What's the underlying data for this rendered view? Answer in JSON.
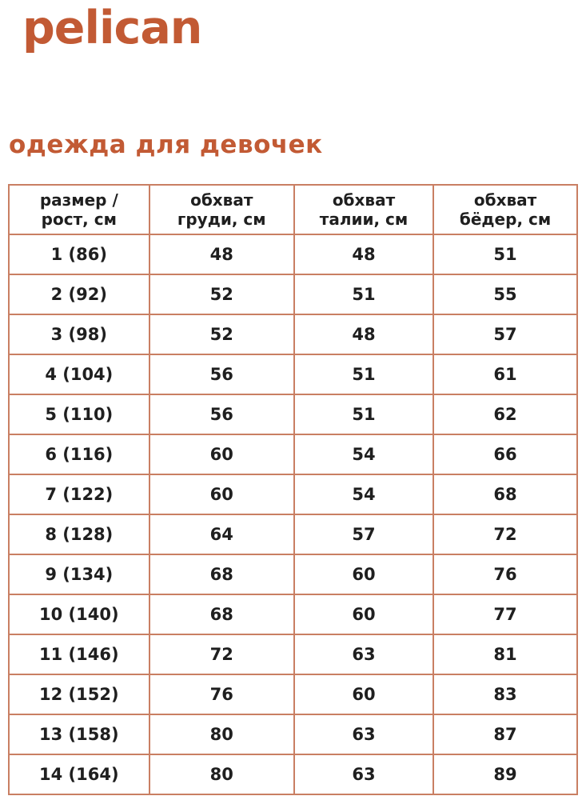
{
  "brand": {
    "logo_text": "pelican",
    "subtitle": "одежда для девочек"
  },
  "colors": {
    "accent": "#c25a34",
    "table_border": "#c97f63",
    "cell_text": "#1f1f1f",
    "background": "#ffffff"
  },
  "size_table": {
    "headers": [
      "размер /\nрост, см",
      "обхват\nгруди, см",
      "обхват\nталии, см",
      "обхват\nбёдер, см"
    ],
    "rows": [
      [
        "1 (86)",
        "48",
        "48",
        "51"
      ],
      [
        "2 (92)",
        "52",
        "51",
        "55"
      ],
      [
        "3 (98)",
        "52",
        "48",
        "57"
      ],
      [
        "4 (104)",
        "56",
        "51",
        "61"
      ],
      [
        "5 (110)",
        "56",
        "51",
        "62"
      ],
      [
        "6 (116)",
        "60",
        "54",
        "66"
      ],
      [
        "7 (122)",
        "60",
        "54",
        "68"
      ],
      [
        "8 (128)",
        "64",
        "57",
        "72"
      ],
      [
        "9 (134)",
        "68",
        "60",
        "76"
      ],
      [
        "10 (140)",
        "68",
        "60",
        "77"
      ],
      [
        "11 (146)",
        "72",
        "63",
        "81"
      ],
      [
        "12 (152)",
        "76",
        "60",
        "83"
      ],
      [
        "13 (158)",
        "80",
        "63",
        "87"
      ],
      [
        "14 (164)",
        "80",
        "63",
        "89"
      ]
    ]
  },
  "chart_data": {
    "type": "table",
    "title": "одежда для девочек",
    "columns": [
      "размер / рост, см",
      "обхват груди, см",
      "обхват талии, см",
      "обхват бёдер, см"
    ],
    "rows": [
      [
        "1 (86)",
        48,
        48,
        51
      ],
      [
        "2 (92)",
        52,
        51,
        55
      ],
      [
        "3 (98)",
        52,
        48,
        57
      ],
      [
        "4 (104)",
        56,
        51,
        61
      ],
      [
        "5 (110)",
        56,
        51,
        62
      ],
      [
        "6 (116)",
        60,
        54,
        66
      ],
      [
        "7 (122)",
        60,
        54,
        68
      ],
      [
        "8 (128)",
        64,
        57,
        72
      ],
      [
        "9 (134)",
        68,
        60,
        76
      ],
      [
        "10 (140)",
        68,
        60,
        77
      ],
      [
        "11 (146)",
        72,
        63,
        81
      ],
      [
        "12 (152)",
        76,
        60,
        83
      ],
      [
        "13 (158)",
        80,
        63,
        87
      ],
      [
        "14 (164)",
        80,
        63,
        89
      ]
    ]
  }
}
